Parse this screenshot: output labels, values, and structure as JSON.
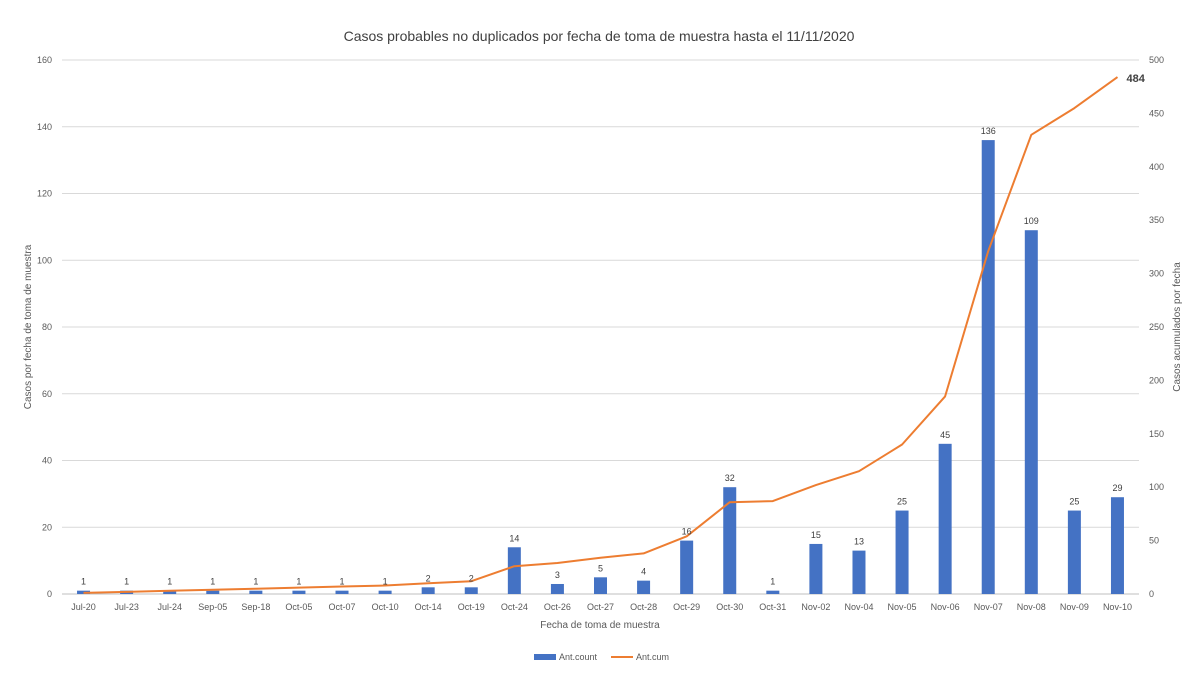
{
  "chart_data": {
    "type": "bar",
    "title": "Casos probables no duplicados por fecha de toma de muestra hasta el 11/11/2020",
    "xlabel": "Fecha de toma de muestra",
    "ylabel": "Casos por fecha de toma de muestra",
    "y2label": "Casos acumulados por fecha",
    "ylim": [
      0,
      160
    ],
    "y2lim": [
      0,
      500
    ],
    "yticks": [
      0,
      20,
      40,
      60,
      80,
      100,
      120,
      140,
      160
    ],
    "y2ticks": [
      0,
      50,
      100,
      150,
      200,
      250,
      300,
      350,
      400,
      450,
      500
    ],
    "grid": true,
    "legend_position": "bottom",
    "categories": [
      "Jul-20",
      "Jul-23",
      "Jul-24",
      "Sep-05",
      "Sep-18",
      "Oct-05",
      "Oct-07",
      "Oct-10",
      "Oct-14",
      "Oct-19",
      "Oct-24",
      "Oct-26",
      "Oct-27",
      "Oct-28",
      "Oct-29",
      "Oct-30",
      "Oct-31",
      "Nov-02",
      "Nov-04",
      "Nov-05",
      "Nov-06",
      "Nov-07",
      "Nov-08",
      "Nov-09",
      "Nov-10"
    ],
    "series": [
      {
        "name": "Ant.count",
        "type": "bar",
        "axis": "left",
        "color": "#4472C4",
        "values": [
          1,
          1,
          1,
          1,
          1,
          1,
          1,
          1,
          2,
          2,
          14,
          3,
          5,
          4,
          16,
          32,
          1,
          15,
          13,
          25,
          45,
          136,
          109,
          25,
          29
        ]
      },
      {
        "name": "Ant.cum",
        "type": "line",
        "axis": "right",
        "color": "#ED7D31",
        "values": [
          1,
          2,
          3,
          4,
          5,
          6,
          7,
          8,
          10,
          12,
          26,
          29,
          34,
          38,
          54,
          86,
          87,
          102,
          115,
          140,
          185,
          321,
          430,
          455,
          484
        ],
        "end_label": "484"
      }
    ]
  }
}
